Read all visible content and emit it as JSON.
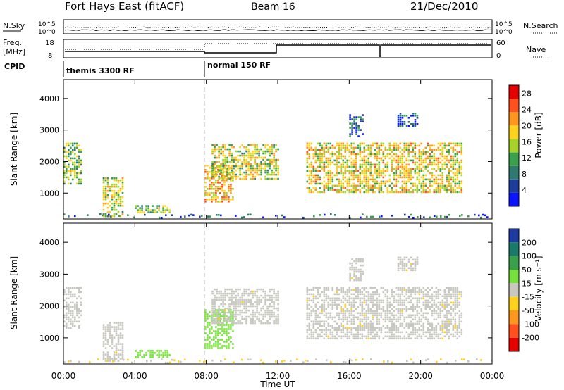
{
  "header": {
    "station": "Fort Hays East (fitACF)",
    "beam": "Beam 16",
    "date": "21/Dec/2010"
  },
  "panels": {
    "noise_left_label": "N.Sky",
    "noise_left_ticks": [
      "10^5",
      "10^0"
    ],
    "noise_right_label": "N.Search",
    "noise_right_ticks": [
      "10^5",
      "10^0"
    ],
    "freq_label_1": "Freq.",
    "freq_label_2": "[MHz]",
    "freq_ticks": [
      "18",
      "8"
    ],
    "nave_label": "Nave",
    "nave_ticks": [
      "60",
      "0"
    ],
    "cpid_label": "CPID",
    "cpid_1": "themis 3300 RF",
    "cpid_2": "normal 150 RF"
  },
  "chart_data": [
    {
      "type": "heatmap",
      "name": "power",
      "ylabel": "Slant Range [km]",
      "ylim": [
        180,
        4600
      ],
      "yticks": [
        "1000",
        "2000",
        "3000",
        "4000"
      ],
      "colorbar_label": "Power [dB]",
      "colorbar_ticks": [
        "4",
        "8",
        "12",
        "16",
        "20",
        "24",
        "28"
      ],
      "colorbar_range": [
        0,
        30
      ],
      "colors": [
        "#0a14ff",
        "#1e3c9c",
        "#2e7a6e",
        "#3aa04c",
        "#a6d22a",
        "#ffd21e",
        "#ff961e",
        "#ff501e",
        "#e60000"
      ],
      "blobs": [
        {
          "t": [
            0.0,
            1.0
          ],
          "r": [
            1300,
            2600
          ],
          "v": 14
        },
        {
          "t": [
            2.2,
            3.3
          ],
          "r": [
            250,
            1500
          ],
          "v": 16
        },
        {
          "t": [
            4.0,
            5.9
          ],
          "r": [
            380,
            620
          ],
          "v": 14
        },
        {
          "t": [
            7.9,
            9.5
          ],
          "r": [
            700,
            1900
          ],
          "v": 20
        },
        {
          "t": [
            8.3,
            12.0
          ],
          "r": [
            1450,
            2550
          ],
          "v": 16
        },
        {
          "t": [
            13.6,
            22.3
          ],
          "r": [
            1000,
            2600
          ],
          "v": 18
        },
        {
          "t": [
            16.0,
            16.8
          ],
          "r": [
            2800,
            3500
          ],
          "v": 6
        },
        {
          "t": [
            18.7,
            19.8
          ],
          "r": [
            3100,
            3550
          ],
          "v": 6
        }
      ]
    },
    {
      "type": "heatmap",
      "name": "velocity",
      "ylabel": "Slant Range [km]",
      "ylim": [
        180,
        4600
      ],
      "yticks": [
        "1000",
        "2000",
        "3000",
        "4000"
      ],
      "xlabel": "Time UT",
      "xticks": [
        "00:00",
        "04:00",
        "08:00",
        "12:00",
        "16:00",
        "20:00",
        "00:00"
      ],
      "xlim": [
        0,
        24
      ],
      "colorbar_label": "Velocity [m s⁻¹]",
      "colorbar_ticks": [
        "200",
        "100",
        "50",
        "15",
        "-15",
        "-50",
        "-100",
        "-200"
      ],
      "colors": [
        "#1e3ca0",
        "#1a7a6a",
        "#3aa04c",
        "#78e03c",
        "#c8c8c0",
        "#ffd21e",
        "#ff961e",
        "#ff501e",
        "#e60000"
      ],
      "blobs": [
        {
          "t": [
            0.0,
            1.0
          ],
          "r": [
            1300,
            2600
          ],
          "v": 0
        },
        {
          "t": [
            2.2,
            3.3
          ],
          "r": [
            250,
            1500
          ],
          "v": 0
        },
        {
          "t": [
            4.0,
            5.9
          ],
          "r": [
            380,
            620
          ],
          "v": 40
        },
        {
          "t": [
            7.9,
            9.5
          ],
          "r": [
            700,
            1900
          ],
          "v": 45
        },
        {
          "t": [
            8.3,
            12.0
          ],
          "r": [
            1450,
            2550
          ],
          "v": 0
        },
        {
          "t": [
            13.6,
            22.3
          ],
          "r": [
            1000,
            2600
          ],
          "v": 0
        },
        {
          "t": [
            16.0,
            16.8
          ],
          "r": [
            2800,
            3500
          ],
          "v": 0
        },
        {
          "t": [
            18.7,
            19.8
          ],
          "r": [
            3100,
            3550
          ],
          "v": 0
        }
      ]
    }
  ]
}
